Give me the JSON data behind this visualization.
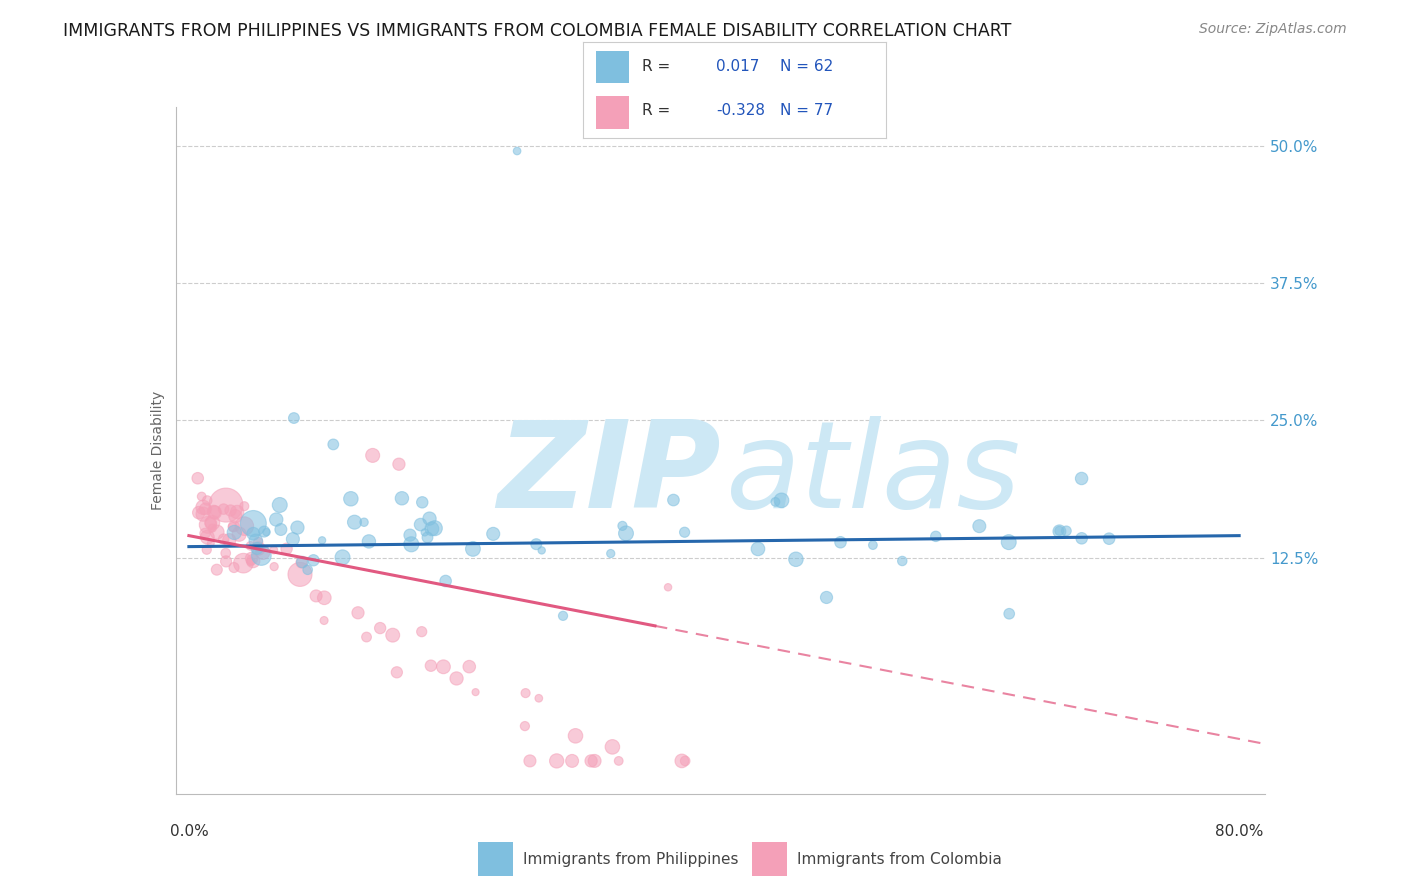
{
  "title": "IMMIGRANTS FROM PHILIPPINES VS IMMIGRANTS FROM COLOMBIA FEMALE DISABILITY CORRELATION CHART",
  "source": "Source: ZipAtlas.com",
  "ylabel": "Female Disability",
  "xlim": [
    -0.01,
    0.82
  ],
  "ylim": [
    -0.09,
    0.535
  ],
  "yticks": [
    0.125,
    0.25,
    0.375,
    0.5
  ],
  "ytick_labels": [
    "12.5%",
    "25.0%",
    "37.5%",
    "50.0%"
  ],
  "blue_R": 0.017,
  "blue_N": 62,
  "pink_R": -0.328,
  "pink_N": 77,
  "blue_color": "#7fbfdf",
  "pink_color": "#f4a0b8",
  "blue_line_color": "#1a5fa8",
  "pink_line_color": "#e0507a",
  "legend_label_blue": "Immigrants from Philippines",
  "legend_label_pink": "Immigrants from Colombia",
  "background_color": "#ffffff",
  "grid_color": "#c8c8c8",
  "watermark_zip": "ZIP",
  "watermark_atlas": "atlas",
  "watermark_color": "#cde8f5",
  "title_fontsize": 12.5,
  "source_fontsize": 10,
  "axis_label_fontsize": 10,
  "tick_fontsize": 11,
  "tick_color": "#4499cc"
}
